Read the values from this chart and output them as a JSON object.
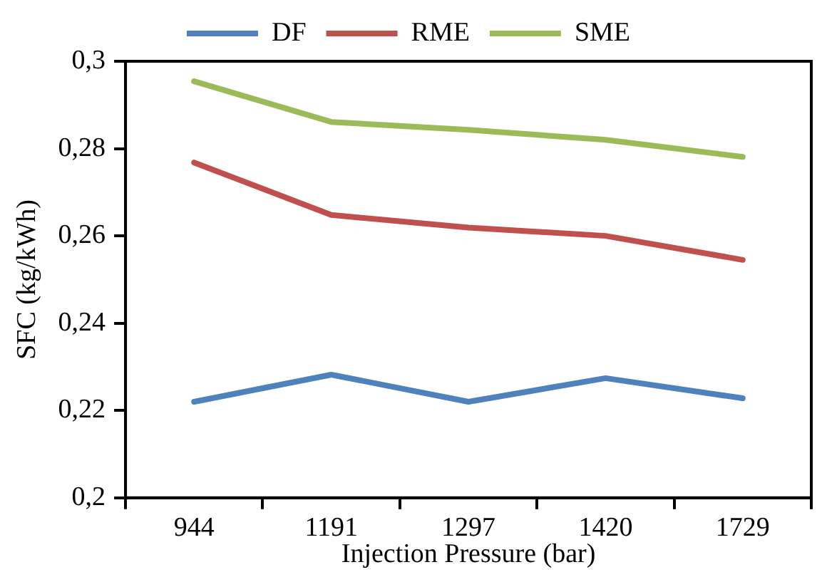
{
  "chart_data": {
    "type": "line",
    "xlabel": "Injection Pressure (bar)",
    "ylabel": "SFC (kg/kWh)",
    "categories": [
      "944",
      "1191",
      "1297",
      "1420",
      "1729"
    ],
    "series": [
      {
        "name": "DF",
        "color": "#4f81bd",
        "values": [
          0.222,
          0.2282,
          0.222,
          0.2274,
          0.2228
        ]
      },
      {
        "name": "RME",
        "color": "#c0504d",
        "values": [
          0.2768,
          0.2648,
          0.2619,
          0.26,
          0.2545
        ]
      },
      {
        "name": "SME",
        "color": "#9bbb59",
        "values": [
          0.2954,
          0.2861,
          0.2843,
          0.282,
          0.2781
        ]
      }
    ],
    "ylim": [
      0.2,
      0.3
    ],
    "yticks": [
      {
        "value": 0.2,
        "label": "0,2"
      },
      {
        "value": 0.22,
        "label": "0,22"
      },
      {
        "value": 0.24,
        "label": "0,24"
      },
      {
        "value": 0.26,
        "label": "0,26"
      },
      {
        "value": 0.28,
        "label": "0,28"
      },
      {
        "value": 0.3,
        "label": "0,3"
      }
    ],
    "grid": false,
    "legend": "top",
    "marker": "none",
    "line_style": "solid"
  }
}
